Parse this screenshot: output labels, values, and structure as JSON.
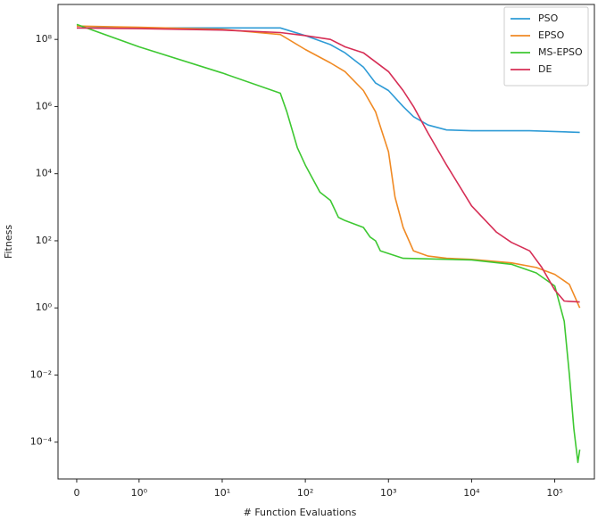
{
  "chart_data": {
    "type": "line",
    "xlabel": "# Function Evaluations",
    "ylabel": "Fitness",
    "xscale": "symlog",
    "yscale": "log",
    "xlim": [
      -0.3,
      300000
    ],
    "ylim": [
      8e-06,
      1100000000.0
    ],
    "xticks": [
      0,
      {
        "value": 1,
        "label": "10⁰"
      },
      {
        "value": 10,
        "label": "10¹"
      },
      {
        "value": 100,
        "label": "10²"
      },
      {
        "value": 1000,
        "label": "10³"
      },
      {
        "value": 10000,
        "label": "10⁴"
      },
      {
        "value": 100000,
        "label": "10⁵"
      }
    ],
    "yticks": [
      {
        "value": 0.0001,
        "label": "10⁻⁴"
      },
      {
        "value": 0.01,
        "label": "10⁻²"
      },
      {
        "value": 1,
        "label": "10⁰"
      },
      {
        "value": 100,
        "label": "10²"
      },
      {
        "value": 10000,
        "label": "10⁴"
      },
      {
        "value": 1000000,
        "label": "10⁶"
      },
      {
        "value": 100000000,
        "label": "10⁸"
      }
    ],
    "legend": "upper right",
    "series": [
      {
        "name": "PSO",
        "color": "#2e9bd6",
        "x": [
          0,
          1,
          10,
          50,
          100,
          200,
          300,
          500,
          700,
          1000,
          1500,
          2000,
          3000,
          5000,
          10000,
          50000,
          200000
        ],
        "values": [
          220000000,
          220000000,
          220000000,
          220000000,
          130000000,
          70000000,
          40000000,
          15000000,
          5000000,
          3000000,
          1000000,
          500000,
          280000,
          200000,
          190000,
          190000,
          170000
        ]
      },
      {
        "name": "EPSO",
        "color": "#f08a24",
        "x": [
          0,
          1,
          10,
          50,
          100,
          200,
          300,
          500,
          700,
          1000,
          1200,
          1500,
          2000,
          3000,
          5000,
          10000,
          30000,
          60000,
          100000,
          150000,
          200000
        ],
        "values": [
          250000000,
          230000000,
          200000000,
          140000000,
          50000000,
          20000000,
          11000000,
          3000000,
          700000,
          45000,
          2000,
          250,
          50,
          35,
          30,
          28,
          22,
          16,
          10,
          5,
          1
        ]
      },
      {
        "name": "MS-EPSO",
        "color": "#3ec832",
        "x": [
          0,
          1,
          10,
          50,
          60,
          80,
          100,
          150,
          200,
          250,
          300,
          500,
          600,
          700,
          800,
          1500,
          10000,
          30000,
          60000,
          100000,
          130000,
          150000,
          170000,
          190000,
          200000
        ],
        "values": [
          280000000,
          60000000,
          10000000,
          2500000,
          700000,
          60000,
          18000,
          2800,
          1600,
          500,
          400,
          250,
          130,
          100,
          50,
          30,
          27,
          20,
          11,
          4.5,
          0.4,
          0.01,
          0.00025,
          2.5e-05,
          6e-05
        ]
      },
      {
        "name": "DE",
        "color": "#d62e55",
        "x": [
          0,
          1,
          10,
          50,
          100,
          200,
          300,
          500,
          1000,
          1500,
          2000,
          3000,
          5000,
          10000,
          20000,
          30000,
          50000,
          70000,
          100000,
          130000,
          200000
        ],
        "values": [
          220000000,
          210000000,
          190000000,
          160000000,
          130000000,
          100000000,
          60000000,
          40000000,
          11000000,
          3000000,
          1000000,
          160000,
          18000,
          1100,
          180,
          90,
          50,
          16,
          3.4,
          1.6,
          1.5
        ]
      }
    ]
  }
}
